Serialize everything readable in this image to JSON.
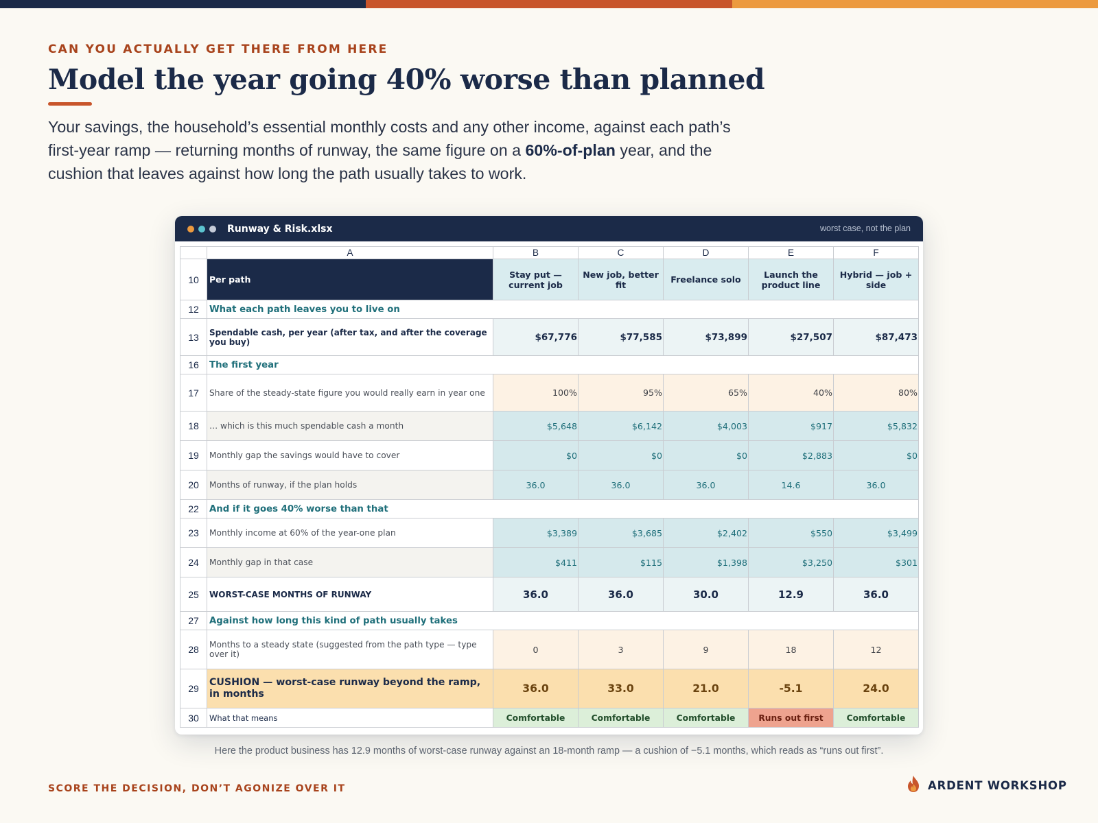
{
  "colors": {
    "navy": "#1b2a48",
    "rust": "#c8552b",
    "orange": "#ec9a3f",
    "teal": "#1f6f7a",
    "gold": "#fbdfae",
    "good": "#dcefd9",
    "bad": "#eea38f"
  },
  "header": {
    "kicker": "CAN YOU ACTUALLY GET THERE FROM HERE",
    "title": "Model the year going 40% worse than planned",
    "lede_part1": "Your savings, the household’s essential monthly costs and any other income, against each path’s first-year ramp — returning months of runway, the same figure on a ",
    "lede_bold": "60%-of-plan",
    "lede_part2": " year, and the cushion that leaves against how long the path usually takes to work."
  },
  "window": {
    "file_name": "Runway & Risk.xlsx",
    "note": "worst case, not the plan",
    "dot_colors": [
      "#ec9a3f",
      "#5cc3cf",
      "#c5cbd8"
    ]
  },
  "sheet": {
    "columns": [
      "A",
      "B",
      "C",
      "D",
      "E",
      "F"
    ],
    "header_row": {
      "num": "10",
      "label": "Per path",
      "paths": [
        "Stay put — current job",
        "New job, better fit",
        "Freelance solo",
        "Launch the product line",
        "Hybrid — job + side"
      ]
    },
    "sections": {
      "s12": {
        "num": "12",
        "label": "What each path leaves you to live on"
      },
      "s16": {
        "num": "16",
        "label": "The first year"
      },
      "s22": {
        "num": "22",
        "label": "And if it goes 40% worse than that"
      },
      "s27": {
        "num": "27",
        "label": "Against how long this kind of path usually takes"
      }
    },
    "rows": {
      "r13": {
        "num": "13",
        "label": "Spendable cash, per year  (after tax, and after the coverage you buy)",
        "values": [
          "$67,776",
          "$77,585",
          "$73,899",
          "$27,507",
          "$87,473"
        ]
      },
      "r17": {
        "num": "17",
        "label": "Share of the steady-state figure you would really earn in year one",
        "values": [
          "100%",
          "95%",
          "65%",
          "40%",
          "80%"
        ]
      },
      "r18": {
        "num": "18",
        "label": "… which is this much spendable cash a month",
        "values": [
          "$5,648",
          "$6,142",
          "$4,003",
          "$917",
          "$5,832"
        ]
      },
      "r19": {
        "num": "19",
        "label": "Monthly gap the savings would have to cover",
        "values": [
          "$0",
          "$0",
          "$0",
          "$2,883",
          "$0"
        ]
      },
      "r20": {
        "num": "20",
        "label": "Months of runway, if the plan holds",
        "values": [
          "36.0",
          "36.0",
          "36.0",
          "14.6",
          "36.0"
        ]
      },
      "r23": {
        "num": "23",
        "label": "Monthly income at 60% of the year-one plan",
        "values": [
          "$3,389",
          "$3,685",
          "$2,402",
          "$550",
          "$3,499"
        ]
      },
      "r24": {
        "num": "24",
        "label": "Monthly gap in that case",
        "values": [
          "$411",
          "$115",
          "$1,398",
          "$3,250",
          "$301"
        ]
      },
      "r25": {
        "num": "25",
        "label": "WORST-CASE MONTHS OF RUNWAY",
        "values": [
          "36.0",
          "36.0",
          "30.0",
          "12.9",
          "36.0"
        ]
      },
      "r28": {
        "num": "28",
        "label": "Months to a steady state  (suggested from the path type — type over it)",
        "values": [
          "0",
          "3",
          "9",
          "18",
          "12"
        ]
      },
      "r29": {
        "num": "29",
        "label": "CUSHION — worst-case runway beyond the ramp, in months",
        "values": [
          "36.0",
          "33.0",
          "21.0",
          "-5.1",
          "24.0"
        ]
      },
      "r30": {
        "num": "30",
        "label": "What that means",
        "values": [
          "Comfortable",
          "Comfortable",
          "Comfortable",
          "Runs out first",
          "Comfortable"
        ]
      }
    }
  },
  "caption": "Here the product business has 12.9 months of worst-case runway against an 18-month ramp — a cushion of −5.1 months, which reads as “runs out first”.",
  "footer": {
    "tagline": "SCORE THE DECISION, DON’T AGONIZE OVER IT",
    "brand": "ARDENT WORKSHOP"
  }
}
